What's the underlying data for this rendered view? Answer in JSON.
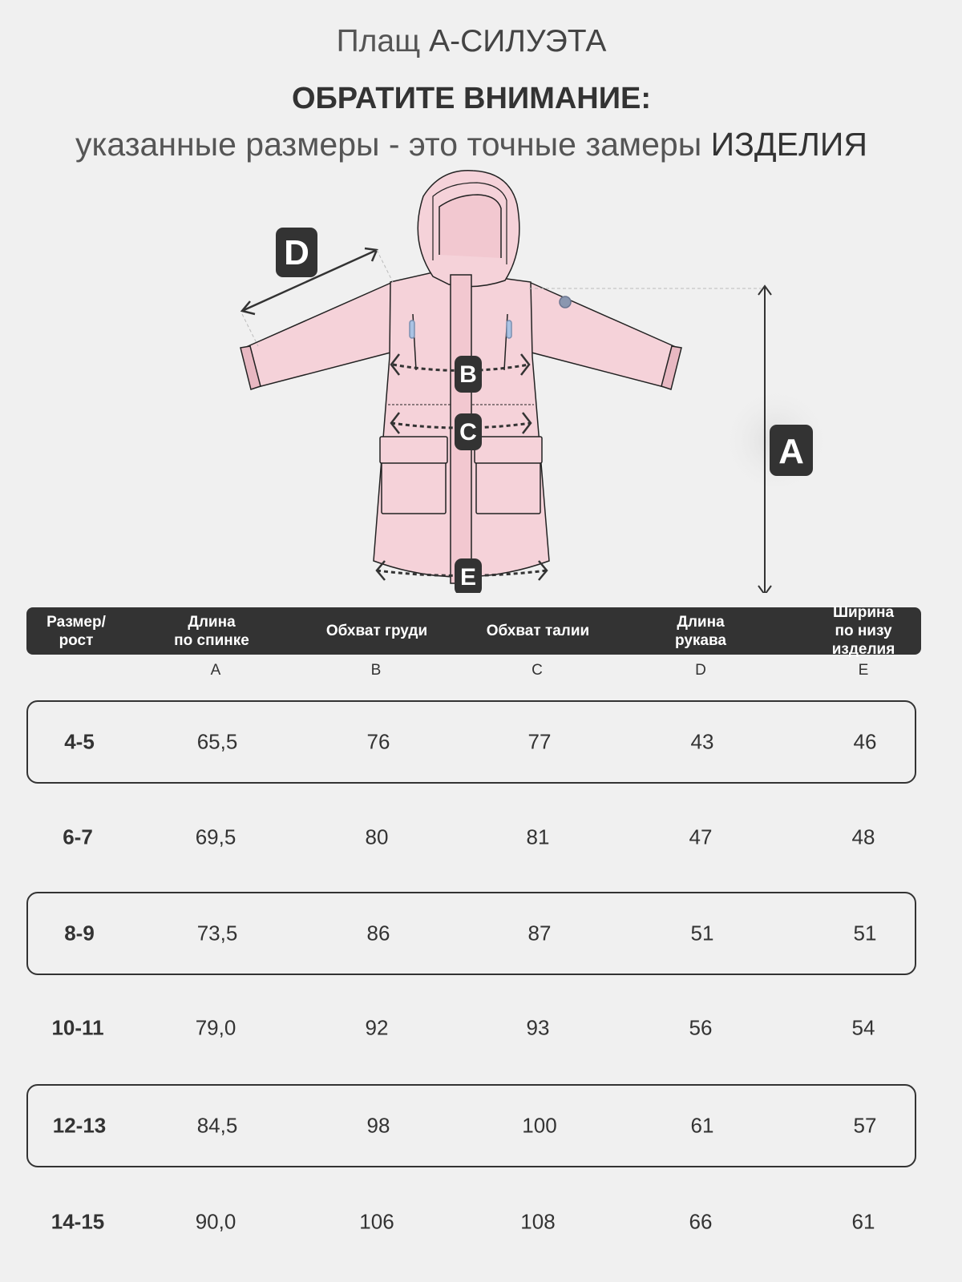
{
  "title": {
    "prefix": "Плащ",
    "name": "А-СИЛУЭТА"
  },
  "notice": {
    "heading": "ОБРАТИТЕ ВНИМАНИЕ:",
    "text": "указанные размеры - это точные замеры",
    "emphasis": "ИЗДЕЛИЯ"
  },
  "diagram": {
    "labels": [
      "A",
      "B",
      "C",
      "D",
      "E"
    ],
    "garment_color": "#f5d2d9"
  },
  "table": {
    "headers": [
      "Размер/\nрост",
      "Длина\nпо спинке",
      "Обхват груди",
      "Обхват талии",
      "Длина\nрукава",
      "Ширина по низу\nизделия"
    ],
    "letters": [
      "",
      "A",
      "B",
      "C",
      "D",
      "E"
    ],
    "rows": [
      [
        "4-5",
        "65,5",
        "76",
        "77",
        "43",
        "46"
      ],
      [
        "6-7",
        "69,5",
        "80",
        "81",
        "47",
        "48"
      ],
      [
        "8-9",
        "73,5",
        "86",
        "87",
        "51",
        "51"
      ],
      [
        "10-11",
        "79,0",
        "92",
        "93",
        "56",
        "54"
      ],
      [
        "12-13",
        "84,5",
        "98",
        "100",
        "61",
        "57"
      ],
      [
        "14-15",
        "90,0",
        "106",
        "108",
        "66",
        "61"
      ]
    ]
  }
}
